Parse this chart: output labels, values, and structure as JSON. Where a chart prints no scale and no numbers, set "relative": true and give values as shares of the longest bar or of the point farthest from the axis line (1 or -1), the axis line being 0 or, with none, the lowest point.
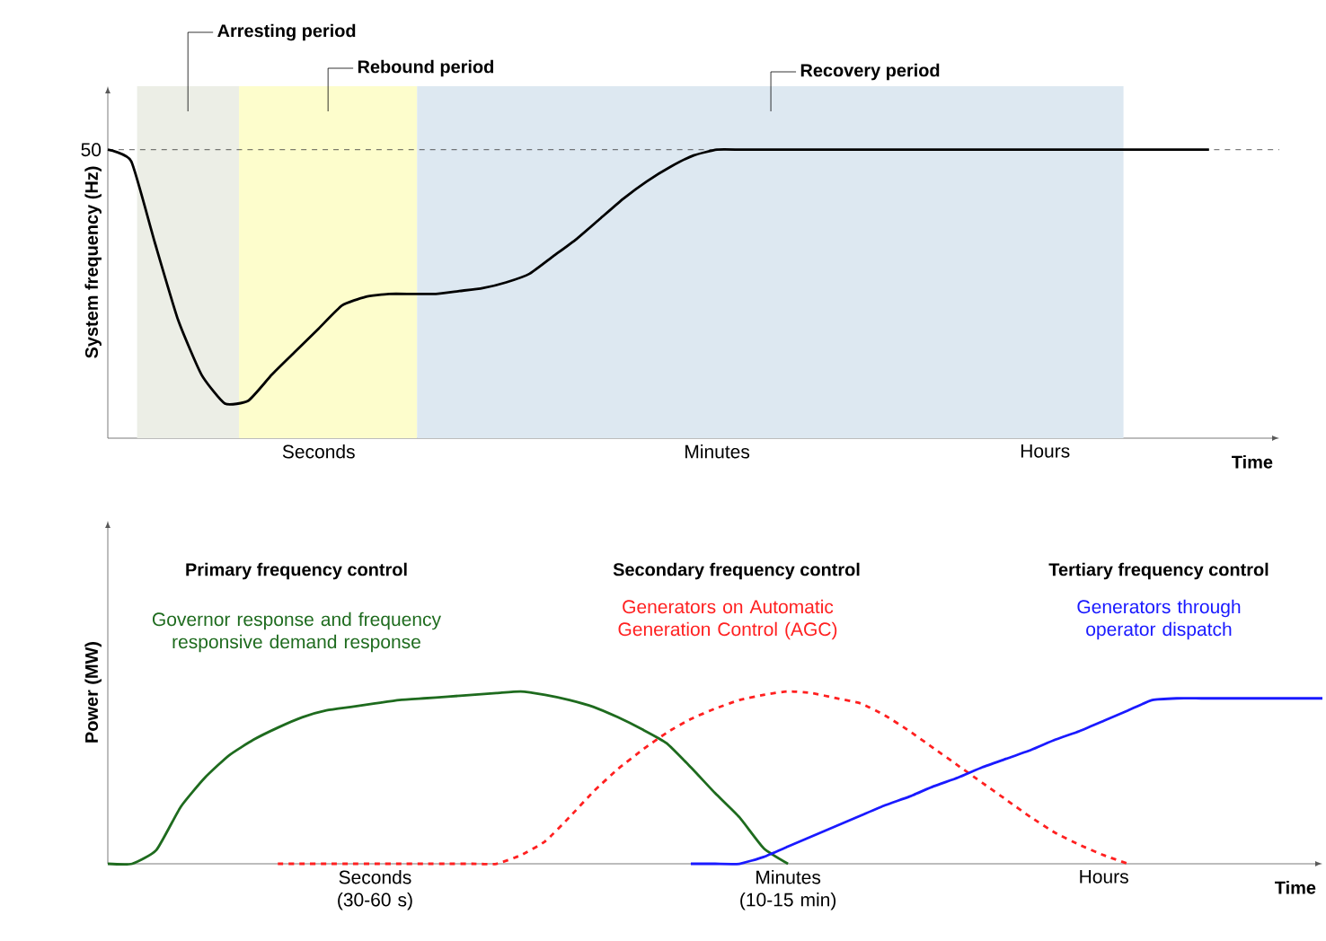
{
  "chart_data": [
    {
      "type": "line",
      "relative": true,
      "ylabel": "System frequency (Hz)",
      "xlabel": "Time",
      "categories": [
        null,
        null,
        null,
        null,
        null,
        null,
        null,
        null,
        null,
        "Seconds",
        null,
        null,
        null,
        null,
        null,
        null,
        null,
        null,
        null,
        null,
        null,
        null,
        null,
        null,
        null,
        null,
        "Minutes",
        null,
        null,
        null,
        null,
        null,
        null,
        null,
        null,
        null,
        null,
        null,
        null,
        null,
        "Hours",
        null,
        null,
        null,
        null,
        null,
        null,
        null,
        null,
        null,
        null
      ],
      "series": [
        {
          "color": "#000000",
          "line_style": "solid",
          "values": [
            1.0,
            0.96,
            0.68,
            0.41,
            0.22,
            0.12,
            0.13,
            0.22,
            0.3,
            0.38,
            0.46,
            0.49,
            0.5,
            0.5,
            0.5,
            0.51,
            0.52,
            0.54,
            0.57,
            0.63,
            0.69,
            0.76,
            0.83,
            0.89,
            0.94,
            0.98,
            1.0,
            1.0,
            1.0,
            1.0,
            1.0,
            1.0,
            1.0,
            1.0,
            1.0,
            1.0,
            1.0,
            1.0,
            1.0,
            1.0,
            1.0,
            1.0,
            1.0,
            1.0,
            1.0,
            1.0,
            1.0,
            1.0,
            null,
            null,
            null
          ]
        }
      ],
      "annotations": [
        "50",
        "Arresting period",
        "Rebound period",
        "Recovery period"
      ],
      "ref_lines": [
        {
          "axis": "y",
          "value": 1,
          "color": "#333333",
          "line_style": "dashed"
        }
      ]
    },
    {
      "type": "line",
      "relative": true,
      "ylabel": "Power (MW)",
      "xlabel": "Time",
      "categories": [
        null,
        null,
        null,
        null,
        null,
        null,
        null,
        null,
        null,
        null,
        null,
        "Seconds (30-60 s)",
        null,
        null,
        null,
        null,
        null,
        null,
        null,
        null,
        null,
        null,
        null,
        null,
        null,
        null,
        null,
        null,
        "Minutes (10-15 min)",
        null,
        null,
        null,
        null,
        null,
        null,
        null,
        null,
        null,
        null,
        null,
        null,
        "Hours",
        null,
        null,
        null,
        null,
        null,
        null,
        null,
        null,
        null
      ],
      "annotations": [
        "Primary frequency control",
        "Secondary frequency control",
        "Tertiary frequency control"
      ],
      "series": [
        {
          "name": "Governor response and frequency responsive demand response",
          "color": "#1e6b1e",
          "line_style": "solid",
          "values": [
            0,
            0,
            0.08,
            0.33,
            0.5,
            0.63,
            0.72,
            0.79,
            0.85,
            0.89,
            0.91,
            0.93,
            0.95,
            0.96,
            0.97,
            0.98,
            0.99,
            1.0,
            0.98,
            0.95,
            0.91,
            0.85,
            0.78,
            0.7,
            0.56,
            0.41,
            0.27,
            0.09,
            0,
            null,
            null,
            null,
            null,
            null,
            null,
            null,
            null,
            null,
            null,
            null,
            null,
            null,
            null,
            null,
            null,
            null,
            null,
            null,
            null,
            null,
            null
          ]
        },
        {
          "name": "Generators on Automatic Generation Control (AGC)",
          "color": "#ff2020",
          "line_style": "dashed",
          "values": [
            null,
            null,
            null,
            null,
            null,
            null,
            null,
            0,
            0,
            0,
            0,
            0,
            0,
            0,
            0,
            0,
            0,
            0.05,
            0.13,
            0.27,
            0.42,
            0.55,
            0.66,
            0.76,
            0.84,
            0.9,
            0.95,
            0.98,
            1.0,
            0.99,
            0.96,
            0.93,
            0.86,
            0.77,
            0.67,
            0.57,
            0.47,
            0.37,
            0.27,
            0.18,
            0.11,
            0.05,
            0,
            null,
            null,
            null,
            null,
            null,
            null,
            null,
            null
          ]
        },
        {
          "name": "Generators through operator dispatch",
          "color": "#1a1aff",
          "line_style": "solid",
          "values": [
            null,
            null,
            null,
            null,
            null,
            null,
            null,
            null,
            null,
            null,
            null,
            null,
            null,
            null,
            null,
            null,
            null,
            null,
            null,
            null,
            null,
            null,
            null,
            null,
            0,
            0,
            0,
            0.04,
            0.1,
            0.16,
            0.22,
            0.28,
            0.34,
            0.39,
            0.45,
            0.5,
            0.56,
            0.61,
            0.66,
            0.72,
            0.77,
            0.83,
            0.89,
            0.95,
            0.96,
            0.96,
            0.96,
            0.96,
            0.96,
            0.96,
            0.96
          ]
        }
      ]
    }
  ]
}
